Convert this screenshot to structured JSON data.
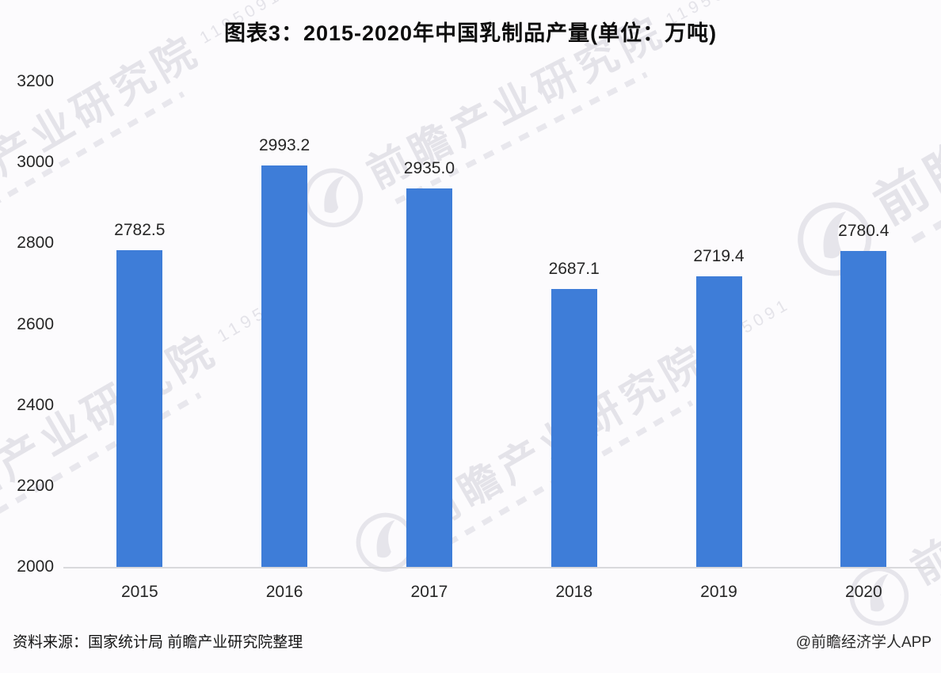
{
  "title": "图表3：2015-2020年中国乳制品产量(单位：万吨)",
  "footer": {
    "source": "资料来源：国家统计局 前瞻产业研究院整理",
    "credit": "@前瞻经济学人APP"
  },
  "watermark": {
    "brand": "前瞻产业研究院",
    "digits": "1195091"
  },
  "colors": {
    "bar": "#3E7DD8",
    "axis_line": "#d9d9dc",
    "text": "#262626",
    "title_text": "#0d0d0d"
  },
  "chart_data": {
    "type": "bar",
    "title": "图表3：2015-2020年中国乳制品产量(单位：万吨)",
    "categories": [
      "2015",
      "2016",
      "2017",
      "2018",
      "2019",
      "2020"
    ],
    "values": [
      2782.5,
      2993.2,
      2935.0,
      2687.1,
      2719.4,
      2780.4
    ],
    "value_labels": [
      "2782.5",
      "2993.2",
      "2935.0",
      "2687.1",
      "2719.4",
      "2780.4"
    ],
    "series_name": "乳制品产量",
    "unit": "万吨",
    "xlabel": "",
    "ylabel": "",
    "ylim": [
      2000,
      3200
    ],
    "yticks": [
      2000,
      2200,
      2400,
      2600,
      2800,
      3000,
      3200
    ],
    "grid": false,
    "legend": null,
    "bar_color": "#3E7DD8"
  }
}
